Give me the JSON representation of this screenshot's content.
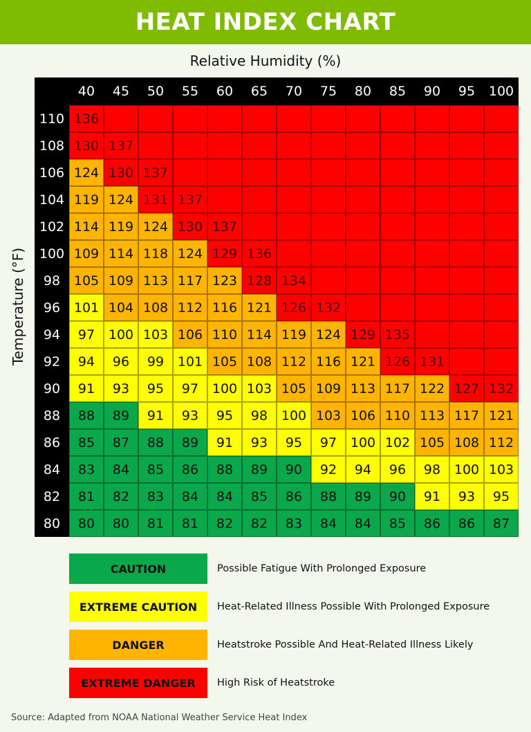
{
  "title": "HEAT INDEX CHART",
  "source": "Source: Adapted from NOAA National Weather Service Heat Index",
  "chart_data": {
    "type": "heatmap",
    "title": "HEAT INDEX CHART",
    "xlabel": "Relative Humidity (%)",
    "ylabel": "Temperature (°F)",
    "x": [
      "40",
      "45",
      "50",
      "55",
      "60",
      "65",
      "70",
      "75",
      "80",
      "85",
      "90",
      "95",
      "100"
    ],
    "y": [
      "110",
      "108",
      "106",
      "104",
      "102",
      "100",
      "98",
      "96",
      "94",
      "92",
      "90",
      "88",
      "86",
      "84",
      "82",
      "80"
    ],
    "values": [
      [
        136,
        null,
        null,
        null,
        null,
        null,
        null,
        null,
        null,
        null,
        null,
        null,
        null
      ],
      [
        130,
        137,
        null,
        null,
        null,
        null,
        null,
        null,
        null,
        null,
        null,
        null,
        null
      ],
      [
        124,
        130,
        137,
        null,
        null,
        null,
        null,
        null,
        null,
        null,
        null,
        null,
        null
      ],
      [
        119,
        124,
        131,
        137,
        null,
        null,
        null,
        null,
        null,
        null,
        null,
        null,
        null
      ],
      [
        114,
        119,
        124,
        130,
        137,
        null,
        null,
        null,
        null,
        null,
        null,
        null,
        null
      ],
      [
        109,
        114,
        118,
        124,
        129,
        136,
        null,
        null,
        null,
        null,
        null,
        null,
        null
      ],
      [
        105,
        109,
        113,
        117,
        123,
        128,
        134,
        null,
        null,
        null,
        null,
        null,
        null
      ],
      [
        101,
        104,
        108,
        112,
        116,
        121,
        126,
        132,
        null,
        null,
        null,
        null,
        null
      ],
      [
        97,
        100,
        103,
        106,
        110,
        114,
        119,
        124,
        129,
        135,
        null,
        null,
        null
      ],
      [
        94,
        96,
        99,
        101,
        105,
        108,
        112,
        116,
        121,
        126,
        131,
        null,
        null
      ],
      [
        91,
        93,
        95,
        97,
        100,
        103,
        105,
        109,
        113,
        117,
        122,
        127,
        132
      ],
      [
        88,
        89,
        91,
        93,
        95,
        98,
        100,
        103,
        106,
        110,
        113,
        117,
        121
      ],
      [
        85,
        87,
        88,
        89,
        91,
        93,
        95,
        97,
        100,
        102,
        105,
        108,
        112
      ],
      [
        83,
        84,
        85,
        86,
        88,
        89,
        90,
        92,
        94,
        96,
        98,
        100,
        103
      ],
      [
        81,
        82,
        83,
        84,
        84,
        85,
        86,
        88,
        89,
        90,
        91,
        93,
        95
      ],
      [
        80,
        80,
        81,
        81,
        82,
        82,
        83,
        84,
        84,
        85,
        86,
        86,
        87
      ]
    ],
    "categories_map": [
      "RRRRRRRRRRRRR",
      "RRRRRRRRRRRRR",
      "ORRRRRRRRRRRR",
      "OORRRRRRRRRRR",
      "OOORRRRRRRRRR",
      "OOOORRRRRRRRR",
      "OOOOORRRRRRRR",
      "YOOOOORRRRRRR",
      "YYYOOOOORRRRR",
      "YYYYOOOOORRRR",
      "YYYYYYOOOOORR",
      "GGYYYYYOOOOOO",
      "GGGGYYYYYYOOO",
      "GGGGGGGYYYYYY",
      "GGGGGGGGGGYYY",
      "GGGGGGGGGGGGG"
    ],
    "legend": [
      {
        "code": "G",
        "label": "CAUTION",
        "description": "Possible Fatigue With Prolonged Exposure",
        "color": "#0aa84b"
      },
      {
        "code": "Y",
        "label": "EXTREME CAUTION",
        "description": "Heat-Related Illness Possible With Prolonged Exposure",
        "color": "#ffff00"
      },
      {
        "code": "O",
        "label": "DANGER",
        "description": "Heatstroke Possible And Heat-Related Illness Likely",
        "color": "#ffb400"
      },
      {
        "code": "R",
        "label": "EXTREME DANGER",
        "description": "High Risk of Heatstroke",
        "color": "#ff0000"
      }
    ],
    "grid": true,
    "legend_position": "bottom"
  }
}
